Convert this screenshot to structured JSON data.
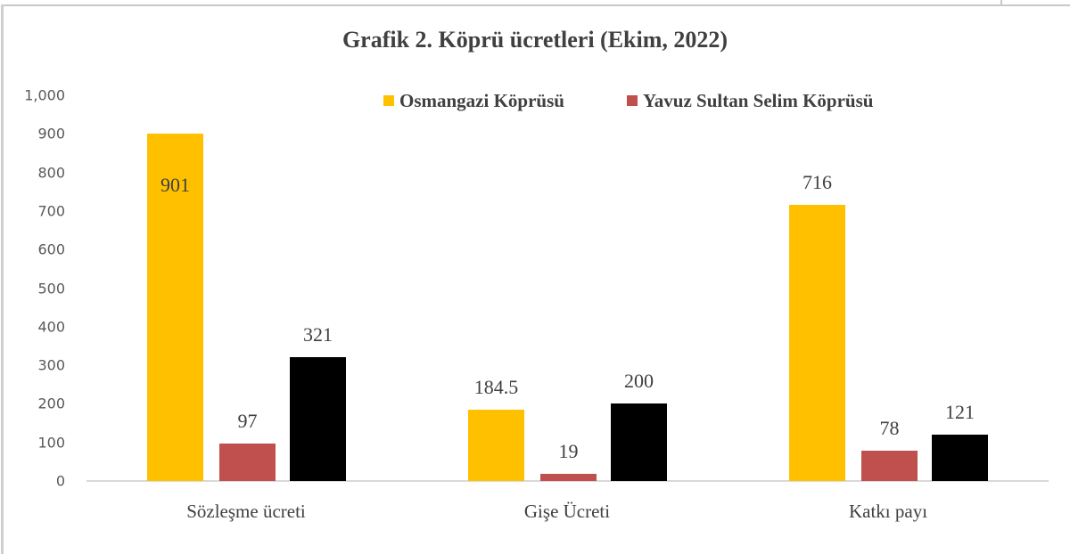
{
  "chart_data": {
    "type": "bar",
    "title": "Grafik 2. Köprü ücretleri (Ekim, 2022)",
    "xlabel": "",
    "ylabel": "",
    "ylim": [
      0,
      1000
    ],
    "grid": false,
    "legend_position": "top-right",
    "categories": [
      "Sözleşme ücreti",
      "Gişe Ücreti",
      "Katkı payı"
    ],
    "yticks": [
      "0",
      "100",
      "200",
      "300",
      "400",
      "500",
      "600",
      "700",
      "800",
      "900",
      "1,000"
    ],
    "series": [
      {
        "name": "Osmangazi Köprüsü",
        "color": "#FFC000",
        "values": [
          901,
          184.5,
          716
        ],
        "labels": [
          "901",
          "184.5",
          "716"
        ]
      },
      {
        "name": "Yavuz Sultan Selim Köprüsü",
        "color": "#C0504D",
        "values": [
          97,
          19,
          78
        ],
        "labels": [
          "97",
          "19",
          "78"
        ]
      },
      {
        "name": "",
        "color": "#000000",
        "values": [
          321,
          200,
          121
        ],
        "labels": [
          "321",
          "200",
          "121"
        ]
      }
    ]
  },
  "legend": [
    {
      "label": "Osmangazi Köprüsü",
      "color": "#FFC000"
    },
    {
      "label": "Yavuz Sultan Selim Köprüsü",
      "color": "#C0504D"
    }
  ]
}
